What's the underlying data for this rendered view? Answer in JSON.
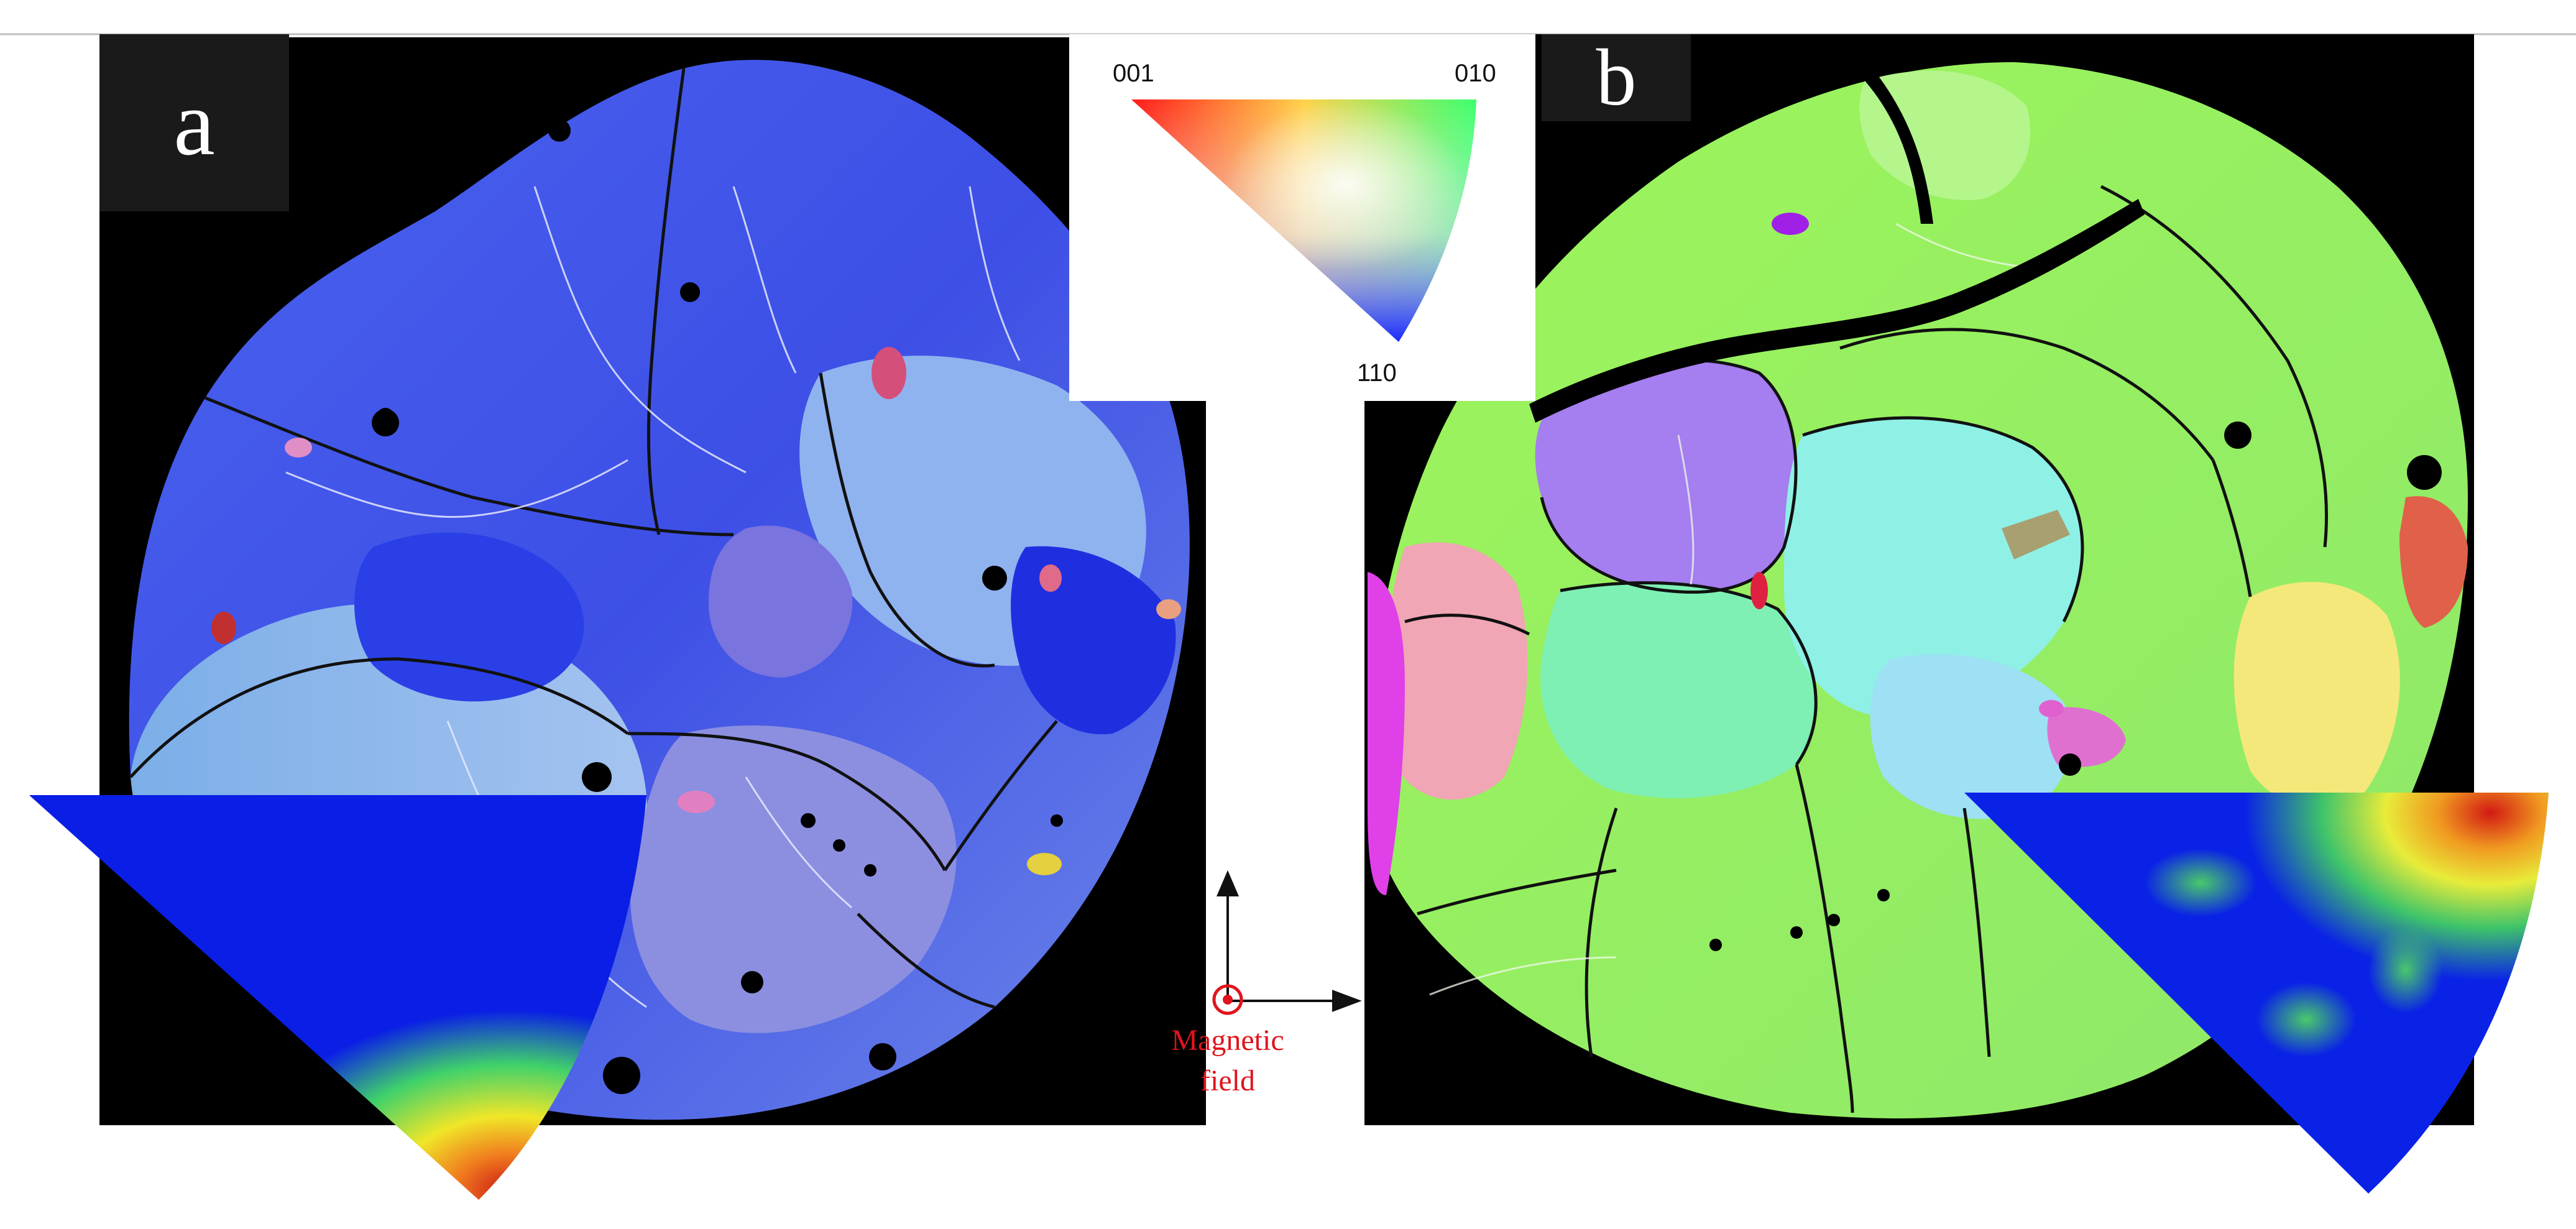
{
  "panels": {
    "a": {
      "label": "a"
    },
    "b": {
      "label": "b"
    }
  },
  "color_key": {
    "corner_001": "001",
    "corner_010": "010",
    "corner_110": "110"
  },
  "magnetic_field": {
    "line1": "Magnetic",
    "line2": "field",
    "color": "#e0141b"
  },
  "colors": {
    "background": "#000000",
    "grain_boundary": "#111111",
    "subgrain_boundary": "#e8e8ff",
    "pole_figure_low": "#0a1ee6",
    "pole_figure_high": "#c81414"
  },
  "icons": [
    "coordinate-axes-icon",
    "out-of-plane-field-icon"
  ]
}
